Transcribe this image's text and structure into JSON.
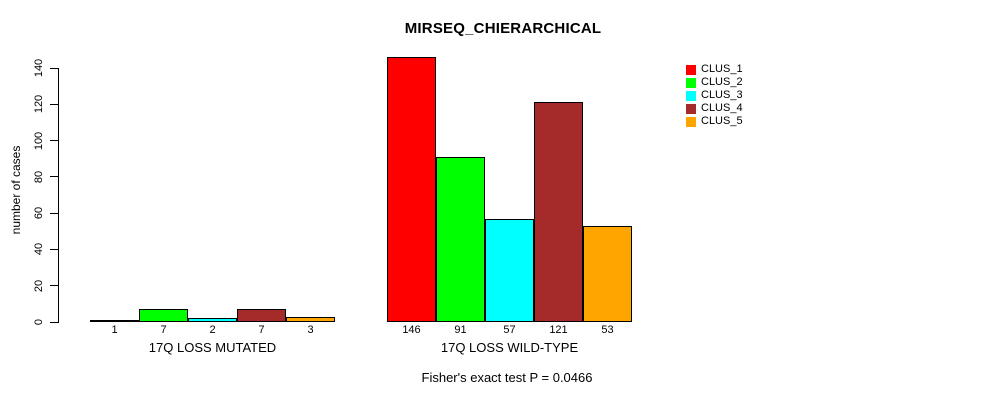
{
  "chart_data": {
    "type": "bar",
    "title": "MIRSEQ_CHIERARCHICAL",
    "ylabel": "number of cases",
    "xlabel": "",
    "annotation": "Fisher's exact test P = 0.0466",
    "categories": [
      "17Q LOSS MUTATED",
      "17Q LOSS WILD-TYPE"
    ],
    "series": [
      {
        "name": "CLUS_1",
        "color": "#ff0000",
        "values": [
          1,
          146
        ]
      },
      {
        "name": "CLUS_2",
        "color": "#00ff00",
        "values": [
          7,
          91
        ]
      },
      {
        "name": "CLUS_3",
        "color": "#00ffff",
        "values": [
          2,
          57
        ]
      },
      {
        "name": "CLUS_4",
        "color": "#a52a2a",
        "values": [
          7,
          121
        ]
      },
      {
        "name": "CLUS_5",
        "color": "#ffa500",
        "values": [
          3,
          53
        ]
      }
    ],
    "ylim": [
      0,
      140
    ],
    "y_ticks": [
      0,
      20,
      40,
      60,
      80,
      100,
      120,
      140
    ],
    "bar_value_labels": true,
    "grid": false,
    "legend": {
      "position": "top-right",
      "entries": [
        "CLUS_1",
        "CLUS_2",
        "CLUS_3",
        "CLUS_4",
        "CLUS_5"
      ]
    },
    "background": "#ffffff",
    "axis_color": "#000000"
  }
}
